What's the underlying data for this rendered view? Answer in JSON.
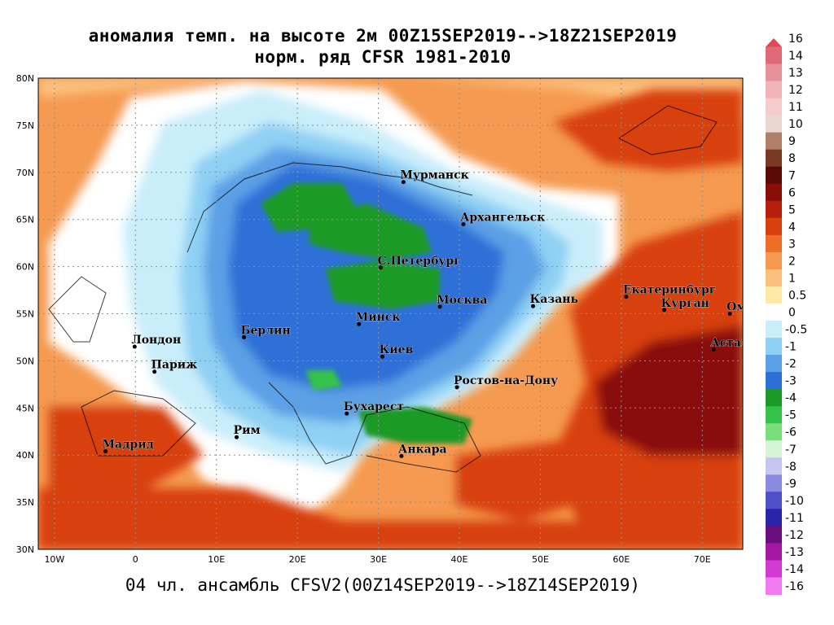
{
  "title_line1": "аномалия темп. на высоте 2м 00Z15SEP2019-->18Z21SEP2019",
  "title_line2": "норм. ряд CFSR 1981-2010",
  "footer": "04 чл. ансамбль CFSV2(00Z14SEP2019-->18Z14SEP2019)",
  "lat_labels": [
    "80N",
    "75N",
    "70N",
    "65N",
    "60N",
    "55N",
    "50N",
    "45N",
    "40N",
    "35N",
    "30N"
  ],
  "lon_labels": [
    "10W",
    "0",
    "10E",
    "20E",
    "30E",
    "40E",
    "50E",
    "60E",
    "70E"
  ],
  "cities": [
    {
      "name": "Мурманск",
      "lon": 33.1,
      "lat": 68.97
    },
    {
      "name": "Архангельск",
      "lon": 40.5,
      "lat": 64.5
    },
    {
      "name": "С.Петербург",
      "lon": 30.3,
      "lat": 59.9
    },
    {
      "name": "Москва",
      "lon": 37.6,
      "lat": 55.75
    },
    {
      "name": "Казань",
      "lon": 49.1,
      "lat": 55.8
    },
    {
      "name": "Екатеринбург",
      "lon": 60.6,
      "lat": 56.8
    },
    {
      "name": "Курган",
      "lon": 65.3,
      "lat": 55.4
    },
    {
      "name": "Омск",
      "lon": 73.4,
      "lat": 55.0
    },
    {
      "name": "Астана",
      "lon": 71.4,
      "lat": 51.2
    },
    {
      "name": "Минск",
      "lon": 27.6,
      "lat": 53.9
    },
    {
      "name": "Берлин",
      "lon": 13.4,
      "lat": 52.5
    },
    {
      "name": "Киев",
      "lon": 30.5,
      "lat": 50.45
    },
    {
      "name": "Лондон",
      "lon": -0.1,
      "lat": 51.5
    },
    {
      "name": "Париж",
      "lon": 2.35,
      "lat": 48.85
    },
    {
      "name": "Ростов-на-Дону",
      "lon": 39.7,
      "lat": 47.2
    },
    {
      "name": "Бухарест",
      "lon": 26.1,
      "lat": 44.4
    },
    {
      "name": "Рим",
      "lon": 12.5,
      "lat": 41.9
    },
    {
      "name": "Мадрид",
      "lon": -3.7,
      "lat": 40.4
    },
    {
      "name": "Анкара",
      "lon": 32.85,
      "lat": 39.9
    }
  ],
  "legend": {
    "labels": [
      "16",
      "14",
      "13",
      "12",
      "11",
      "10",
      "9",
      "8",
      "7",
      "6",
      "5",
      "4",
      "3",
      "2",
      "1",
      "0.5",
      "0",
      "-0.5",
      "-1",
      "-2",
      "-3",
      "-4",
      "-5",
      "-6",
      "-7",
      "-8",
      "-9",
      "-10",
      "-11",
      "-12",
      "-13",
      "-14",
      "-16"
    ],
    "colors": [
      "#dd4a55",
      "#e06a75",
      "#e8909a",
      "#f0b4b8",
      "#f4cccc",
      "#e8d8d0",
      "#b0806a",
      "#7a3a22",
      "#5a0a05",
      "#8a0e08",
      "#b81e0e",
      "#d8400e",
      "#ee6d27",
      "#f59a50",
      "#fbc07e",
      "#fee8a8",
      "#ffffff",
      "#c9eefa",
      "#8fd0f4",
      "#5ba0e6",
      "#2e6fd7",
      "#1a9a28",
      "#34c34a",
      "#78dd7a",
      "#d6f5d6",
      "#c6c6f0",
      "#8a8ae0",
      "#4f4fc8",
      "#2a24a8",
      "#6a107e",
      "#a218a2",
      "#d23ad2",
      "#f07af0"
    ]
  },
  "map_colors": {
    "very_warm": "#8a0e08",
    "warm": "#d8400e",
    "mild_warm": "#ee6d27",
    "slightly_warm": "#f59a50",
    "near_zero": "#fbc07e",
    "neutral": "#ffffff",
    "cool_light": "#c9eefa",
    "cool": "#8fd0f4",
    "cold": "#5ba0e6",
    "colder": "#2e6fd7",
    "green": "#1a9a28"
  }
}
